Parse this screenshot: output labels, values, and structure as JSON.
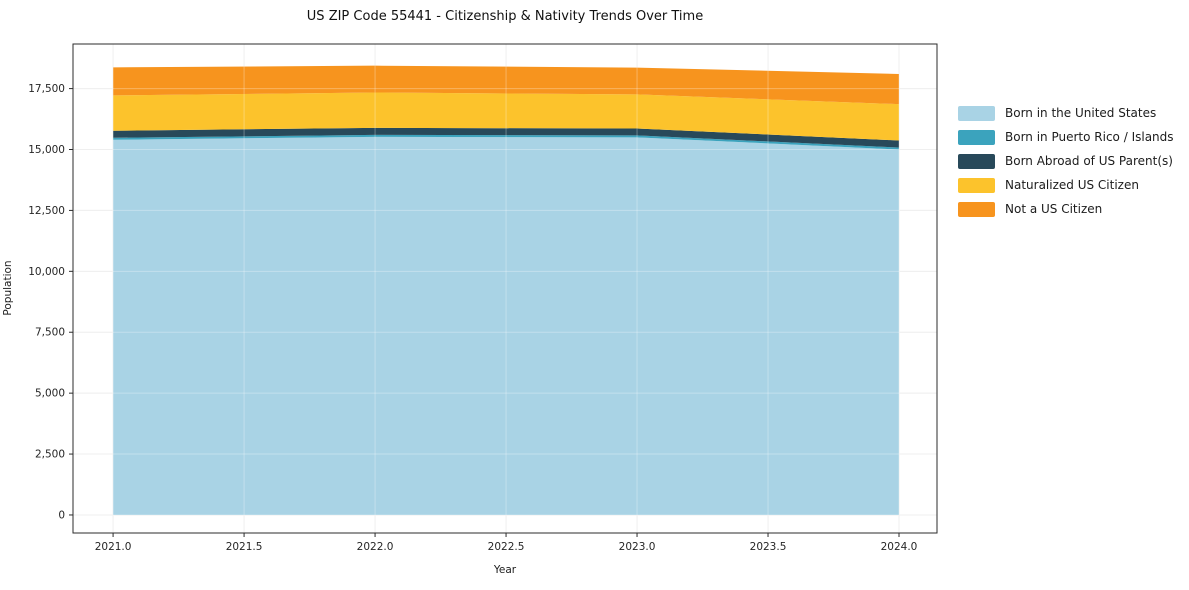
{
  "title": "US ZIP Code 55441 - Citizenship & Nativity Trends Over Time",
  "chart_data": {
    "type": "area",
    "stacked": true,
    "title": "US ZIP Code 55441 - Citizenship & Nativity Trends Over Time",
    "xlabel": "Year",
    "ylabel": "Population",
    "x": [
      2021,
      2022,
      2023,
      2024
    ],
    "series": [
      {
        "name": "Born in the United States",
        "color": "#A9D3E5",
        "values": [
          15400,
          15520,
          15500,
          15000
        ]
      },
      {
        "name": "Born in Puerto Rico / Islands",
        "color": "#3BA3BD",
        "values": [
          80,
          80,
          80,
          80
        ]
      },
      {
        "name": "Born Abroad of US Parent(s)",
        "color": "#28495A",
        "values": [
          290,
          290,
          280,
          290
        ]
      },
      {
        "name": "Naturalized US Citizen",
        "color": "#FCC32C",
        "values": [
          1450,
          1450,
          1400,
          1490
        ]
      },
      {
        "name": "Not a US Citizen",
        "color": "#F7941E",
        "values": [
          1150,
          1100,
          1100,
          1240
        ]
      }
    ],
    "x_tick_labels": [
      "2021.0",
      "2021.5",
      "2022.0",
      "2022.5",
      "2023.0",
      "2023.5",
      "2024.0"
    ],
    "x_tick_values": [
      2021,
      2021.5,
      2022,
      2022.5,
      2023,
      2023.5,
      2024
    ],
    "y_tick_labels": [
      "0",
      "2,500",
      "5,000",
      "7,500",
      "10,000",
      "12,500",
      "15,000",
      "17,500"
    ],
    "y_tick_values": [
      0,
      2500,
      5000,
      7500,
      10000,
      12500,
      15000,
      17500
    ],
    "xlim": [
      2020.847,
      2024.145
    ],
    "ylim": [
      -740,
      19330
    ],
    "grid": true,
    "grid_color": "#e9e9e9",
    "spine_color": "#2b2b2b",
    "legend_position": "right"
  }
}
